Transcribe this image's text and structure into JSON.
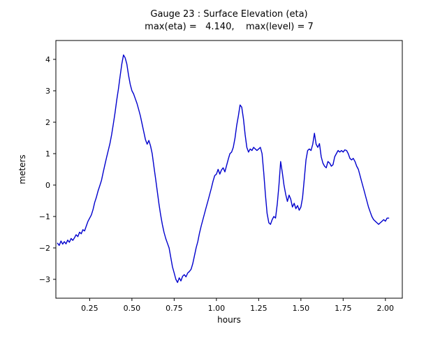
{
  "chart_data": {
    "type": "line",
    "title": "Gauge 23 : Surface Elevation (eta)",
    "subtitle": "max(eta) =   4.140,    max(level) = 7",
    "max_eta": "4.140",
    "max_level": "7",
    "xlabel": "hours",
    "ylabel": "meters",
    "xlim": [
      0.05,
      2.1
    ],
    "ylim": [
      -3.6,
      4.6
    ],
    "grid": false,
    "legend_position": "none",
    "line_color": "#0000cd",
    "x_ticks": {
      "values": [
        0.25,
        0.5,
        0.75,
        1.0,
        1.25,
        1.5,
        1.75,
        2.0
      ],
      "labels": [
        "0.25",
        "0.50",
        "0.75",
        "1.00",
        "1.25",
        "1.50",
        "1.75",
        "2.00"
      ]
    },
    "y_ticks": {
      "values": [
        -3,
        -2,
        -1,
        0,
        1,
        2,
        3,
        4
      ],
      "labels": [
        "−3",
        "−2",
        "−1",
        "0",
        "1",
        "2",
        "3",
        "4"
      ]
    },
    "series": [
      {
        "name": "eta",
        "points": [
          [
            0.06,
            -1.85
          ],
          [
            0.07,
            -1.92
          ],
          [
            0.08,
            -1.78
          ],
          [
            0.09,
            -1.88
          ],
          [
            0.1,
            -1.8
          ],
          [
            0.11,
            -1.87
          ],
          [
            0.12,
            -1.75
          ],
          [
            0.13,
            -1.82
          ],
          [
            0.14,
            -1.7
          ],
          [
            0.15,
            -1.76
          ],
          [
            0.16,
            -1.68
          ],
          [
            0.17,
            -1.58
          ],
          [
            0.18,
            -1.64
          ],
          [
            0.19,
            -1.5
          ],
          [
            0.2,
            -1.55
          ],
          [
            0.21,
            -1.42
          ],
          [
            0.22,
            -1.46
          ],
          [
            0.23,
            -1.3
          ],
          [
            0.24,
            -1.15
          ],
          [
            0.25,
            -1.05
          ],
          [
            0.26,
            -0.95
          ],
          [
            0.27,
            -0.78
          ],
          [
            0.28,
            -0.55
          ],
          [
            0.29,
            -0.38
          ],
          [
            0.3,
            -0.18
          ],
          [
            0.31,
            -0.02
          ],
          [
            0.32,
            0.15
          ],
          [
            0.33,
            0.4
          ],
          [
            0.34,
            0.65
          ],
          [
            0.35,
            0.88
          ],
          [
            0.36,
            1.1
          ],
          [
            0.37,
            1.32
          ],
          [
            0.38,
            1.6
          ],
          [
            0.39,
            1.95
          ],
          [
            0.4,
            2.3
          ],
          [
            0.41,
            2.7
          ],
          [
            0.42,
            3.05
          ],
          [
            0.43,
            3.45
          ],
          [
            0.44,
            3.85
          ],
          [
            0.45,
            4.14
          ],
          [
            0.46,
            4.05
          ],
          [
            0.47,
            3.85
          ],
          [
            0.48,
            3.5
          ],
          [
            0.49,
            3.2
          ],
          [
            0.5,
            3.0
          ],
          [
            0.51,
            2.9
          ],
          [
            0.52,
            2.75
          ],
          [
            0.53,
            2.6
          ],
          [
            0.54,
            2.4
          ],
          [
            0.55,
            2.2
          ],
          [
            0.56,
            1.95
          ],
          [
            0.57,
            1.7
          ],
          [
            0.58,
            1.45
          ],
          [
            0.59,
            1.3
          ],
          [
            0.6,
            1.42
          ],
          [
            0.61,
            1.25
          ],
          [
            0.62,
            1.0
          ],
          [
            0.63,
            0.6
          ],
          [
            0.64,
            0.2
          ],
          [
            0.65,
            -0.2
          ],
          [
            0.66,
            -0.6
          ],
          [
            0.67,
            -0.95
          ],
          [
            0.68,
            -1.25
          ],
          [
            0.69,
            -1.5
          ],
          [
            0.7,
            -1.7
          ],
          [
            0.71,
            -1.85
          ],
          [
            0.72,
            -2.0
          ],
          [
            0.73,
            -2.3
          ],
          [
            0.74,
            -2.6
          ],
          [
            0.75,
            -2.8
          ],
          [
            0.76,
            -3.0
          ],
          [
            0.77,
            -3.1
          ],
          [
            0.78,
            -2.95
          ],
          [
            0.79,
            -3.05
          ],
          [
            0.8,
            -2.9
          ],
          [
            0.81,
            -2.85
          ],
          [
            0.82,
            -2.92
          ],
          [
            0.83,
            -2.8
          ],
          [
            0.84,
            -2.75
          ],
          [
            0.85,
            -2.68
          ],
          [
            0.86,
            -2.5
          ],
          [
            0.87,
            -2.25
          ],
          [
            0.88,
            -2.0
          ],
          [
            0.89,
            -1.8
          ],
          [
            0.9,
            -1.52
          ],
          [
            0.91,
            -1.3
          ],
          [
            0.92,
            -1.1
          ],
          [
            0.93,
            -0.9
          ],
          [
            0.94,
            -0.7
          ],
          [
            0.95,
            -0.5
          ],
          [
            0.96,
            -0.3
          ],
          [
            0.97,
            -0.1
          ],
          [
            0.98,
            0.12
          ],
          [
            0.99,
            0.3
          ],
          [
            1.0,
            0.35
          ],
          [
            1.01,
            0.5
          ],
          [
            1.02,
            0.35
          ],
          [
            1.03,
            0.48
          ],
          [
            1.04,
            0.55
          ],
          [
            1.05,
            0.42
          ],
          [
            1.06,
            0.62
          ],
          [
            1.07,
            0.82
          ],
          [
            1.08,
            1.0
          ],
          [
            1.09,
            1.05
          ],
          [
            1.1,
            1.2
          ],
          [
            1.11,
            1.5
          ],
          [
            1.12,
            1.9
          ],
          [
            1.13,
            2.2
          ],
          [
            1.14,
            2.55
          ],
          [
            1.15,
            2.48
          ],
          [
            1.16,
            2.1
          ],
          [
            1.17,
            1.6
          ],
          [
            1.18,
            1.2
          ],
          [
            1.19,
            1.05
          ],
          [
            1.2,
            1.15
          ],
          [
            1.21,
            1.1
          ],
          [
            1.22,
            1.2
          ],
          [
            1.23,
            1.15
          ],
          [
            1.24,
            1.1
          ],
          [
            1.25,
            1.15
          ],
          [
            1.26,
            1.2
          ],
          [
            1.27,
            1.0
          ],
          [
            1.28,
            0.4
          ],
          [
            1.29,
            -0.3
          ],
          [
            1.3,
            -0.9
          ],
          [
            1.31,
            -1.2
          ],
          [
            1.32,
            -1.25
          ],
          [
            1.33,
            -1.1
          ],
          [
            1.34,
            -1.0
          ],
          [
            1.35,
            -1.05
          ],
          [
            1.36,
            -0.6
          ],
          [
            1.37,
            0.0
          ],
          [
            1.38,
            0.75
          ],
          [
            1.39,
            0.4
          ],
          [
            1.4,
            0.0
          ],
          [
            1.41,
            -0.3
          ],
          [
            1.42,
            -0.52
          ],
          [
            1.43,
            -0.32
          ],
          [
            1.44,
            -0.45
          ],
          [
            1.45,
            -0.7
          ],
          [
            1.46,
            -0.58
          ],
          [
            1.47,
            -0.75
          ],
          [
            1.48,
            -0.65
          ],
          [
            1.49,
            -0.8
          ],
          [
            1.5,
            -0.7
          ],
          [
            1.51,
            -0.4
          ],
          [
            1.52,
            0.2
          ],
          [
            1.53,
            0.8
          ],
          [
            1.54,
            1.1
          ],
          [
            1.55,
            1.15
          ],
          [
            1.56,
            1.1
          ],
          [
            1.57,
            1.3
          ],
          [
            1.58,
            1.65
          ],
          [
            1.59,
            1.3
          ],
          [
            1.6,
            1.2
          ],
          [
            1.61,
            1.32
          ],
          [
            1.62,
            0.9
          ],
          [
            1.63,
            0.7
          ],
          [
            1.64,
            0.6
          ],
          [
            1.65,
            0.55
          ],
          [
            1.66,
            0.75
          ],
          [
            1.67,
            0.7
          ],
          [
            1.68,
            0.6
          ],
          [
            1.69,
            0.65
          ],
          [
            1.7,
            0.9
          ],
          [
            1.71,
            1.0
          ],
          [
            1.72,
            1.1
          ],
          [
            1.73,
            1.05
          ],
          [
            1.74,
            1.1
          ],
          [
            1.75,
            1.05
          ],
          [
            1.76,
            1.12
          ],
          [
            1.77,
            1.1
          ],
          [
            1.78,
            1.0
          ],
          [
            1.79,
            0.85
          ],
          [
            1.8,
            0.8
          ],
          [
            1.81,
            0.85
          ],
          [
            1.82,
            0.75
          ],
          [
            1.83,
            0.6
          ],
          [
            1.84,
            0.5
          ],
          [
            1.85,
            0.3
          ],
          [
            1.86,
            0.1
          ],
          [
            1.87,
            -0.1
          ],
          [
            1.88,
            -0.3
          ],
          [
            1.89,
            -0.5
          ],
          [
            1.9,
            -0.7
          ],
          [
            1.91,
            -0.85
          ],
          [
            1.92,
            -1.0
          ],
          [
            1.93,
            -1.1
          ],
          [
            1.94,
            -1.15
          ],
          [
            1.95,
            -1.2
          ],
          [
            1.96,
            -1.25
          ],
          [
            1.97,
            -1.2
          ],
          [
            1.98,
            -1.15
          ],
          [
            1.99,
            -1.1
          ],
          [
            2.0,
            -1.15
          ],
          [
            2.01,
            -1.05
          ],
          [
            2.02,
            -1.05
          ]
        ]
      }
    ]
  }
}
